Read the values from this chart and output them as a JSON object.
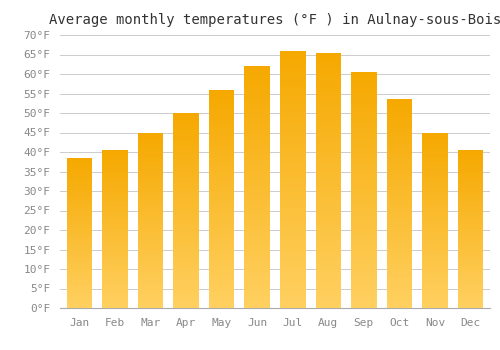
{
  "title": "Average monthly temperatures (°F ) in Aulnay-sous-Bois",
  "months": [
    "Jan",
    "Feb",
    "Mar",
    "Apr",
    "May",
    "Jun",
    "Jul",
    "Aug",
    "Sep",
    "Oct",
    "Nov",
    "Dec"
  ],
  "values": [
    38.5,
    40.5,
    45.0,
    50.0,
    56.0,
    62.0,
    66.0,
    65.5,
    60.5,
    53.5,
    45.0,
    40.5
  ],
  "bar_color_top": "#F5A800",
  "bar_color_bottom": "#FFD060",
  "ylim": [
    0,
    70
  ],
  "yticks": [
    0,
    5,
    10,
    15,
    20,
    25,
    30,
    35,
    40,
    45,
    50,
    55,
    60,
    65,
    70
  ],
  "background_color": "#FFFFFF",
  "grid_color": "#CCCCCC",
  "title_fontsize": 10,
  "tick_fontsize": 8,
  "tick_color": "#888888",
  "font_family": "monospace"
}
